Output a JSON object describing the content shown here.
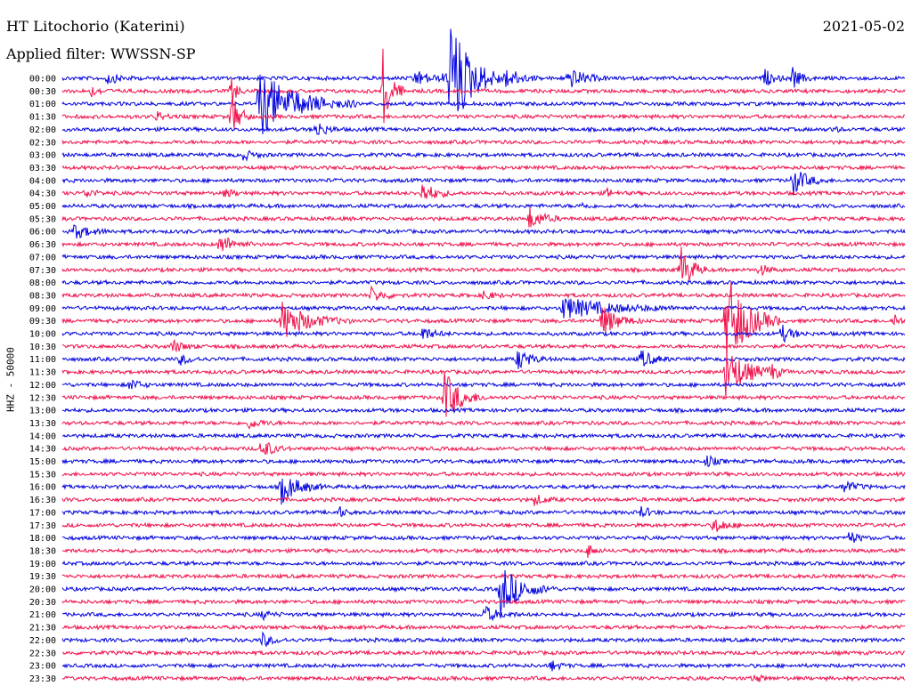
{
  "header": {
    "station": "HT Litochorio (Katerini)",
    "filter": "Applied filter: WWSSN-SP",
    "date": "2021-05-02",
    "channel_label": "HHZ - 50000"
  },
  "colors": {
    "odd_trace": "#0000e0",
    "even_trace": "#f0104a"
  },
  "chart_data": {
    "type": "line",
    "title": "HT Litochorio (Katerini)",
    "ylabel": "HHZ - 50000",
    "rows": [
      "00:00",
      "00:30",
      "01:00",
      "01:30",
      "02:00",
      "02:30",
      "03:00",
      "03:30",
      "04:00",
      "04:30",
      "05:00",
      "05:30",
      "06:00",
      "06:30",
      "07:00",
      "07:30",
      "08:00",
      "08:30",
      "09:00",
      "09:30",
      "10:00",
      "10:30",
      "11:00",
      "11:30",
      "12:00",
      "12:30",
      "13:00",
      "13:30",
      "14:00",
      "14:30",
      "15:00",
      "15:30",
      "16:00",
      "16:30",
      "17:00",
      "17:30",
      "18:00",
      "18:30",
      "19:00",
      "19:30",
      "20:00",
      "20:30",
      "21:00",
      "21:30",
      "22:00",
      "22:30",
      "23:00",
      "23:30"
    ],
    "row_minutes": 30,
    "events": [
      {
        "row": 0,
        "minute": 1.6,
        "amp": 6,
        "dur": 1.2
      },
      {
        "row": 0,
        "minute": 12.5,
        "amp": 10,
        "dur": 1.5
      },
      {
        "row": 0,
        "minute": 13.6,
        "amp": 6,
        "dur": 0.8
      },
      {
        "row": 0,
        "minute": 13.8,
        "amp": 70,
        "dur": 2.0
      },
      {
        "row": 0,
        "minute": 15.8,
        "amp": 14,
        "dur": 1.2
      },
      {
        "row": 0,
        "minute": 18.0,
        "amp": 12,
        "dur": 1.5
      },
      {
        "row": 0,
        "minute": 25.0,
        "amp": 10,
        "dur": 0.8
      },
      {
        "row": 0,
        "minute": 26.0,
        "amp": 12,
        "dur": 0.8
      },
      {
        "row": 1,
        "minute": 1.0,
        "amp": 6,
        "dur": 0.8
      },
      {
        "row": 1,
        "minute": 6.0,
        "amp": 18,
        "dur": 0.5
      },
      {
        "row": 1,
        "minute": 11.4,
        "amp": 50,
        "dur": 0.8
      },
      {
        "row": 2,
        "minute": 7.0,
        "amp": 38,
        "dur": 3.5
      },
      {
        "row": 3,
        "minute": 3.3,
        "amp": 6,
        "dur": 0.8
      },
      {
        "row": 3,
        "minute": 6.0,
        "amp": 28,
        "dur": 0.8
      },
      {
        "row": 4,
        "minute": 9.0,
        "amp": 10,
        "dur": 1.0
      },
      {
        "row": 4,
        "minute": 27.4,
        "amp": 4,
        "dur": 0.5
      },
      {
        "row": 6,
        "minute": 6.4,
        "amp": 6,
        "dur": 1.0
      },
      {
        "row": 8,
        "minute": 26.0,
        "amp": 16,
        "dur": 1.3
      },
      {
        "row": 9,
        "minute": 0.8,
        "amp": 6,
        "dur": 0.8
      },
      {
        "row": 9,
        "minute": 5.8,
        "amp": 5,
        "dur": 0.8
      },
      {
        "row": 9,
        "minute": 12.8,
        "amp": 12,
        "dur": 1.3
      },
      {
        "row": 9,
        "minute": 19.4,
        "amp": 5,
        "dur": 0.6
      },
      {
        "row": 10,
        "minute": 18.5,
        "amp": 4,
        "dur": 0.5
      },
      {
        "row": 11,
        "minute": 16.6,
        "amp": 13,
        "dur": 1.3
      },
      {
        "row": 12,
        "minute": 0.4,
        "amp": 8,
        "dur": 1.5
      },
      {
        "row": 13,
        "minute": 5.6,
        "amp": 12,
        "dur": 1.2
      },
      {
        "row": 15,
        "minute": 22.0,
        "amp": 30,
        "dur": 1.0
      },
      {
        "row": 15,
        "minute": 24.8,
        "amp": 8,
        "dur": 0.7
      },
      {
        "row": 17,
        "minute": 11.0,
        "amp": 8,
        "dur": 1.2
      },
      {
        "row": 17,
        "minute": 15.0,
        "amp": 6,
        "dur": 0.8
      },
      {
        "row": 18,
        "minute": 17.8,
        "amp": 12,
        "dur": 4.5
      },
      {
        "row": 19,
        "minute": 7.8,
        "amp": 22,
        "dur": 2.5
      },
      {
        "row": 19,
        "minute": 19.2,
        "amp": 18,
        "dur": 1.5
      },
      {
        "row": 19,
        "minute": 23.6,
        "amp": 60,
        "dur": 2.0
      },
      {
        "row": 19,
        "minute": 29.6,
        "amp": 10,
        "dur": 0.5
      },
      {
        "row": 20,
        "minute": 12.8,
        "amp": 8,
        "dur": 1.0
      },
      {
        "row": 20,
        "minute": 25.6,
        "amp": 10,
        "dur": 1.0
      },
      {
        "row": 21,
        "minute": 3.9,
        "amp": 8,
        "dur": 1.0
      },
      {
        "row": 22,
        "minute": 4.2,
        "amp": 6,
        "dur": 1.0
      },
      {
        "row": 22,
        "minute": 16.2,
        "amp": 12,
        "dur": 1.2
      },
      {
        "row": 22,
        "minute": 20.6,
        "amp": 10,
        "dur": 1.2
      },
      {
        "row": 23,
        "minute": 23.6,
        "amp": 30,
        "dur": 2.0
      },
      {
        "row": 23,
        "minute": 25.2,
        "amp": 8,
        "dur": 0.8
      },
      {
        "row": 24,
        "minute": 2.4,
        "amp": 8,
        "dur": 0.8
      },
      {
        "row": 25,
        "minute": 13.6,
        "amp": 30,
        "dur": 1.5
      },
      {
        "row": 27,
        "minute": 6.6,
        "amp": 6,
        "dur": 1.2
      },
      {
        "row": 29,
        "minute": 7.1,
        "amp": 12,
        "dur": 1.0
      },
      {
        "row": 30,
        "minute": 22.9,
        "amp": 8,
        "dur": 0.8
      },
      {
        "row": 32,
        "minute": 7.8,
        "amp": 18,
        "dur": 1.6
      },
      {
        "row": 32,
        "minute": 27.8,
        "amp": 8,
        "dur": 1.0
      },
      {
        "row": 33,
        "minute": 16.8,
        "amp": 6,
        "dur": 1.0
      },
      {
        "row": 34,
        "minute": 9.8,
        "amp": 8,
        "dur": 0.6
      },
      {
        "row": 34,
        "minute": 20.6,
        "amp": 7,
        "dur": 0.8
      },
      {
        "row": 35,
        "minute": 23.2,
        "amp": 10,
        "dur": 1.0
      },
      {
        "row": 36,
        "minute": 28.0,
        "amp": 8,
        "dur": 0.8
      },
      {
        "row": 37,
        "minute": 18.7,
        "amp": 8,
        "dur": 0.6
      },
      {
        "row": 40,
        "minute": 15.6,
        "amp": 28,
        "dur": 2.0
      },
      {
        "row": 42,
        "minute": 7.1,
        "amp": 5,
        "dur": 0.8
      },
      {
        "row": 42,
        "minute": 15.0,
        "amp": 10,
        "dur": 1.3
      },
      {
        "row": 44,
        "minute": 7.1,
        "amp": 8,
        "dur": 1.0
      },
      {
        "row": 46,
        "minute": 17.4,
        "amp": 6,
        "dur": 0.8
      },
      {
        "row": 47,
        "minute": 24.6,
        "amp": 5,
        "dur": 0.8
      }
    ]
  }
}
